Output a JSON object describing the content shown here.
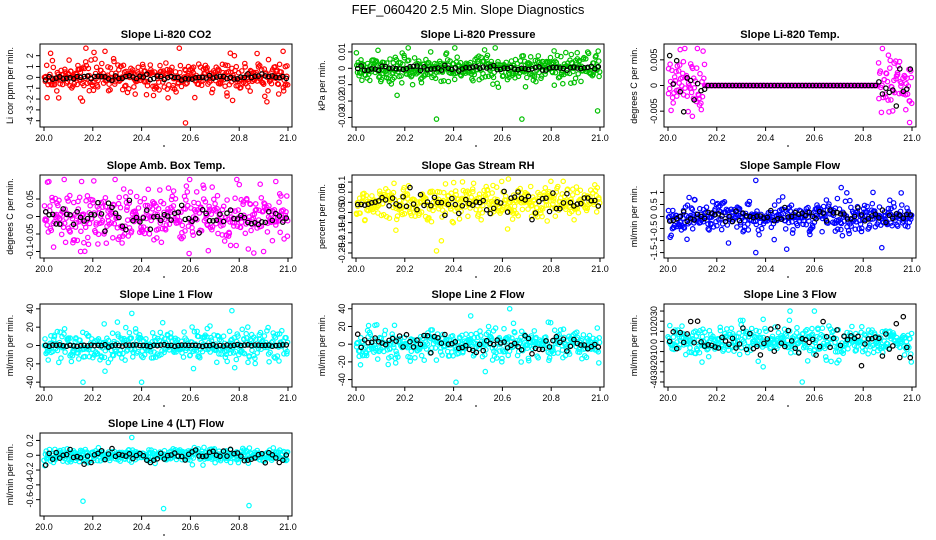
{
  "page": {
    "title": "FEF_060420  2.5 Min. Slope Diagnostics"
  },
  "colors": {
    "red": "#ff0000",
    "green": "#00c000",
    "magenta": "#ff00ff",
    "yellow": "#ffff00",
    "blue": "#0000ff",
    "cyan": "#00ffff",
    "black": "#000000"
  },
  "chart_data": [
    {
      "type": "scatter",
      "title": "Slope Li-820 CO2",
      "ylabel": "Li cor ppm per min.",
      "xlim": [
        20.0,
        21.0
      ],
      "ylim": [
        -4.3,
        2.8
      ],
      "yticks": [
        -4,
        -3,
        -2,
        -1,
        0,
        1,
        2
      ],
      "xticks": [
        "20.0",
        "20.2",
        "20.4",
        "20.6",
        "20.8",
        "21.0"
      ],
      "color": "red",
      "noise": 0.8,
      "outliers": [
        [
          20.25,
          2.4
        ],
        [
          20.58,
          -4.2
        ],
        [
          20.98,
          2.4
        ],
        [
          20.15,
          -1.9
        ],
        [
          20.42,
          -1.6
        ]
      ],
      "black_noise": 0.12
    },
    {
      "type": "scatter",
      "title": "Slope Li-820 Pressure",
      "ylabel": "kPa per min.",
      "xlim": [
        20.0,
        21.0
      ],
      "ylim": [
        -0.034,
        0.013
      ],
      "yticks": [
        -0.03,
        -0.02,
        -0.01,
        0.0,
        0.01
      ],
      "xticks": [
        "20.0",
        "20.2",
        "20.4",
        "20.6",
        "20.8",
        "21.0"
      ],
      "color": "green",
      "noise": 0.005,
      "outliers": [
        [
          20.33,
          -0.031
        ],
        [
          20.68,
          -0.031
        ],
        [
          20.99,
          -0.026
        ],
        [
          20.09,
          0.011
        ]
      ],
      "black_noise": 0.0008
    },
    {
      "type": "scatter",
      "title": "Slope Li-820 Temp.",
      "ylabel": "degrees C per min.",
      "xlim": [
        20.0,
        21.0
      ],
      "ylim": [
        -0.0075,
        0.0075
      ],
      "yticks": [
        -0.005,
        0.0,
        0.005
      ],
      "xticks": [
        "20.0",
        "20.2",
        "20.4",
        "20.6",
        "20.8",
        "21.0"
      ],
      "color": "magenta",
      "noise": 0.003,
      "flat_range": [
        20.15,
        20.86
      ],
      "outliers": [
        [
          20.05,
          0.007
        ],
        [
          20.99,
          -0.0072
        ],
        [
          20.1,
          -0.006
        ]
      ],
      "black_noise": 0.002
    },
    {
      "type": "scatter",
      "title": "Slope Amb. Box Temp.",
      "ylabel": "degrees C per min.",
      "xlim": [
        20.0,
        21.0
      ],
      "ylim": [
        -0.11,
        0.11
      ],
      "yticks": [
        -0.1,
        -0.05,
        0.0,
        0.05
      ],
      "xticks": [
        "20.0",
        "20.2",
        "20.4",
        "20.6",
        "20.8",
        "21.0"
      ],
      "color": "magenta",
      "noise": 0.045,
      "outliers": [
        [
          20.95,
          0.1
        ],
        [
          20.15,
          -0.1
        ],
        [
          20.9,
          -0.1
        ]
      ],
      "black_noise": 0.02
    },
    {
      "type": "scatter",
      "title": "Slope Gas Stream RH",
      "ylabel": "percent per min.",
      "xlim": [
        20.0,
        21.0
      ],
      "ylim": [
        -0.26,
        0.12
      ],
      "yticks": [
        -0.25,
        -0.2,
        -0.15,
        -0.1,
        -0.05,
        0.0,
        0.05,
        0.1
      ],
      "xticks": [
        "20.0",
        "20.2",
        "20.4",
        "20.6",
        "20.8",
        "21.0"
      ],
      "color": "yellow",
      "noise": 0.045,
      "outliers": [
        [
          20.35,
          -0.19
        ],
        [
          20.33,
          -0.24
        ]
      ],
      "black_noise": 0.03
    },
    {
      "type": "scatter",
      "title": "Slope Sample Flow",
      "ylabel": "ml/min per min.",
      "xlim": [
        20.0,
        21.0
      ],
      "ylim": [
        -1.6,
        1.6
      ],
      "yticks": [
        -1.5,
        -1.0,
        -0.5,
        0.0,
        0.5,
        1.0
      ],
      "xticks": [
        "20.0",
        "20.2",
        "20.4",
        "20.6",
        "20.8",
        "21.0"
      ],
      "color": "blue",
      "noise": 0.35,
      "outliers": [
        [
          20.36,
          1.5
        ],
        [
          20.36,
          -1.5
        ],
        [
          20.71,
          1.2
        ],
        [
          20.84,
          1.0
        ]
      ],
      "black_noise": 0.15
    },
    {
      "type": "scatter",
      "title": "Slope Line 1 Flow",
      "ylabel": "ml/min per min.",
      "xlim": [
        20.0,
        21.0
      ],
      "ylim": [
        -42,
        42
      ],
      "yticks": [
        -40,
        -20,
        0,
        20,
        40
      ],
      "xticks": [
        "20.0",
        "20.2",
        "20.4",
        "20.6",
        "20.8",
        "21.0"
      ],
      "color": "cyan",
      "noise": 9,
      "outliers": [
        [
          20.4,
          -40
        ],
        [
          20.77,
          38
        ],
        [
          20.36,
          35
        ],
        [
          20.25,
          -28
        ],
        [
          20.16,
          -40
        ]
      ],
      "black_noise": 0.6
    },
    {
      "type": "scatter",
      "title": "Slope Line 2 Flow",
      "ylabel": "ml/min per min.",
      "xlim": [
        20.0,
        21.0
      ],
      "ylim": [
        -45,
        42
      ],
      "yticks": [
        -40,
        -20,
        0,
        20,
        40
      ],
      "xticks": [
        "20.0",
        "20.2",
        "20.4",
        "20.6",
        "20.8",
        "21.0"
      ],
      "color": "cyan",
      "noise": 10,
      "outliers": [
        [
          20.63,
          40
        ],
        [
          20.41,
          -43
        ],
        [
          20.53,
          -31
        ],
        [
          20.47,
          32
        ]
      ],
      "black_noise": 6
    },
    {
      "type": "scatter",
      "title": "Slope Line 3 Flow",
      "ylabel": "ml/min per min.",
      "xlim": [
        20.0,
        21.0
      ],
      "ylim": [
        -42,
        34
      ],
      "yticks": [
        -40,
        -30,
        -20,
        -10,
        0,
        10,
        20,
        30
      ],
      "xticks": [
        "20.0",
        "20.2",
        "20.4",
        "20.6",
        "20.8",
        "21.0"
      ],
      "color": "cyan",
      "noise": 8,
      "outliers": [
        [
          20.55,
          -40
        ],
        [
          20.6,
          30
        ],
        [
          20.5,
          30
        ],
        [
          20.39,
          -25
        ]
      ],
      "black_noise": 8
    },
    {
      "type": "scatter",
      "title": "Slope Line 4 (LT) Flow",
      "ylabel": "ml/min per min.",
      "xlim": [
        20.0,
        21.0
      ],
      "ylim": [
        -0.78,
        0.26
      ],
      "yticks": [
        -0.6,
        -0.4,
        -0.2,
        0.0,
        0.2
      ],
      "xticks": [
        "20.0",
        "20.2",
        "20.4",
        "20.6",
        "20.8",
        "21.0"
      ],
      "color": "cyan",
      "noise": 0.05,
      "outliers": [
        [
          20.16,
          -0.62
        ],
        [
          20.49,
          -0.72
        ],
        [
          20.84,
          -0.68
        ],
        [
          20.36,
          0.24
        ]
      ],
      "black_noise": 0.05
    }
  ]
}
